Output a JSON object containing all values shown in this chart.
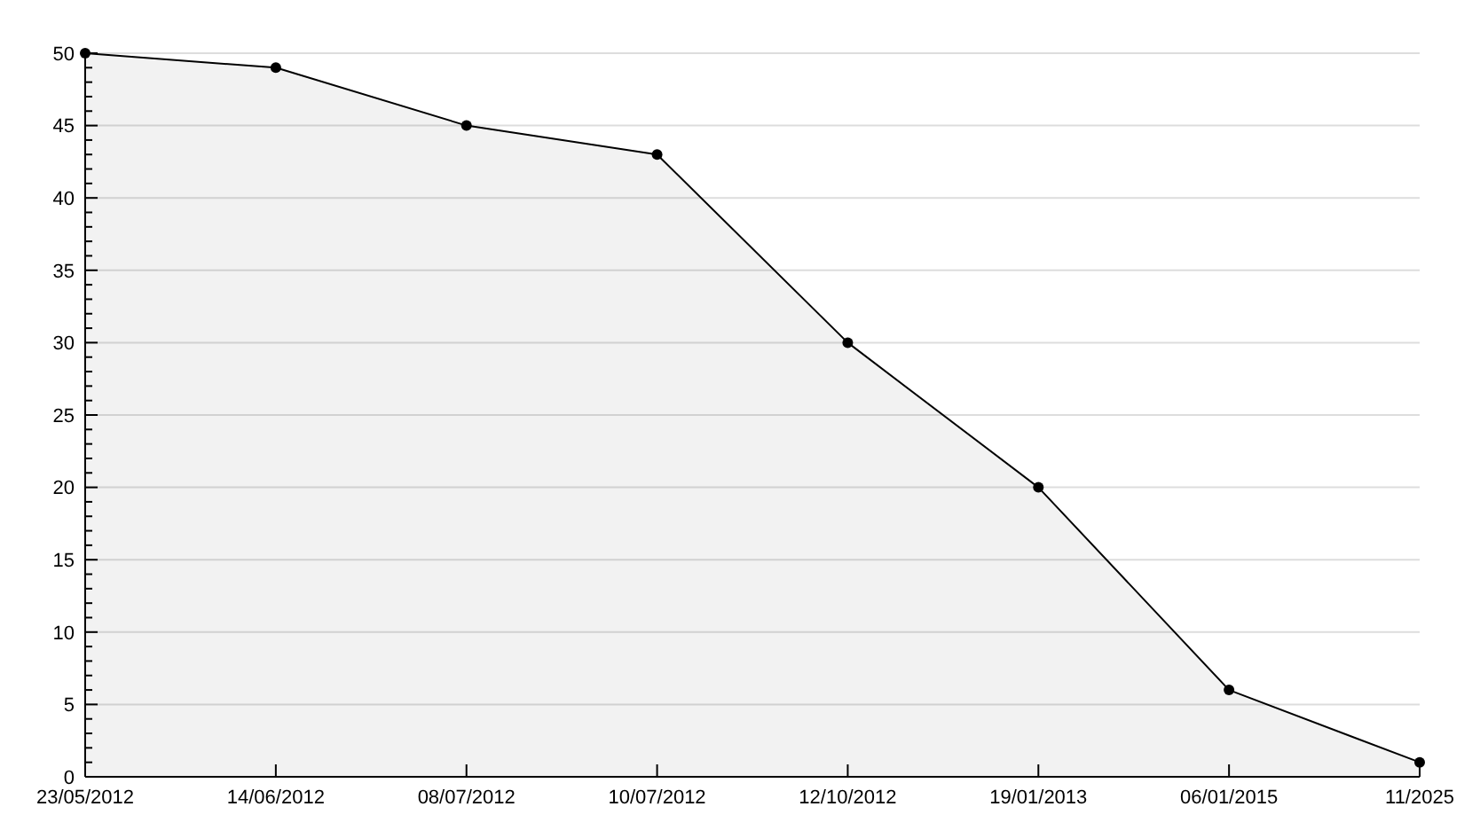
{
  "chart_data": {
    "type": "area",
    "categories": [
      "23/05/2012",
      "14/06/2012",
      "08/07/2012",
      "10/07/2012",
      "12/10/2012",
      "19/01/2013",
      "06/01/2015",
      "11/2025"
    ],
    "series": [
      {
        "color": "#000000",
        "values": [
          50,
          49,
          45,
          43,
          30,
          20,
          6,
          1
        ]
      }
    ],
    "ylim": [
      0,
      50
    ],
    "yticks": [
      0,
      {
        "value": 1,
        "label": null
      },
      {
        "value": 2,
        "label": null
      },
      {
        "value": 3,
        "label": null
      },
      {
        "value": 4,
        "label": null
      },
      5,
      {
        "value": 6,
        "label": null
      },
      {
        "value": 7,
        "label": null
      },
      {
        "value": 8,
        "label": null
      },
      {
        "value": 9,
        "label": null
      },
      10,
      {
        "value": 11,
        "label": null
      },
      {
        "value": 12,
        "label": null
      },
      {
        "value": 13,
        "label": null
      },
      {
        "value": 14,
        "label": null
      },
      15,
      {
        "value": 16,
        "label": null
      },
      {
        "value": 17,
        "label": null
      },
      {
        "value": 18,
        "label": null
      },
      {
        "value": 19,
        "label": null
      },
      20,
      {
        "value": 21,
        "label": null
      },
      {
        "value": 22,
        "label": null
      },
      {
        "value": 23,
        "label": null
      },
      {
        "value": 24,
        "label": null
      },
      25,
      {
        "value": 26,
        "label": null
      },
      {
        "value": 27,
        "label": null
      },
      {
        "value": 28,
        "label": null
      },
      {
        "value": 29,
        "label": null
      },
      30,
      {
        "value": 31,
        "label": null
      },
      {
        "value": 32,
        "label": null
      },
      {
        "value": 33,
        "label": null
      },
      {
        "value": 34,
        "label": null
      },
      35,
      {
        "value": 36,
        "label": null
      },
      {
        "value": 37,
        "label": null
      },
      {
        "value": 38,
        "label": null
      },
      {
        "value": 39,
        "label": null
      },
      40,
      {
        "value": 41,
        "label": null
      },
      {
        "value": 42,
        "label": null
      },
      {
        "value": 43,
        "label": null
      },
      {
        "value": 44,
        "label": null
      },
      45,
      {
        "value": 46,
        "label": null
      },
      {
        "value": 47,
        "label": null
      },
      {
        "value": 48,
        "label": null
      },
      {
        "value": 49,
        "label": null
      },
      50
    ],
    "grid": "y",
    "marker": "circle",
    "line_style": "solid"
  }
}
